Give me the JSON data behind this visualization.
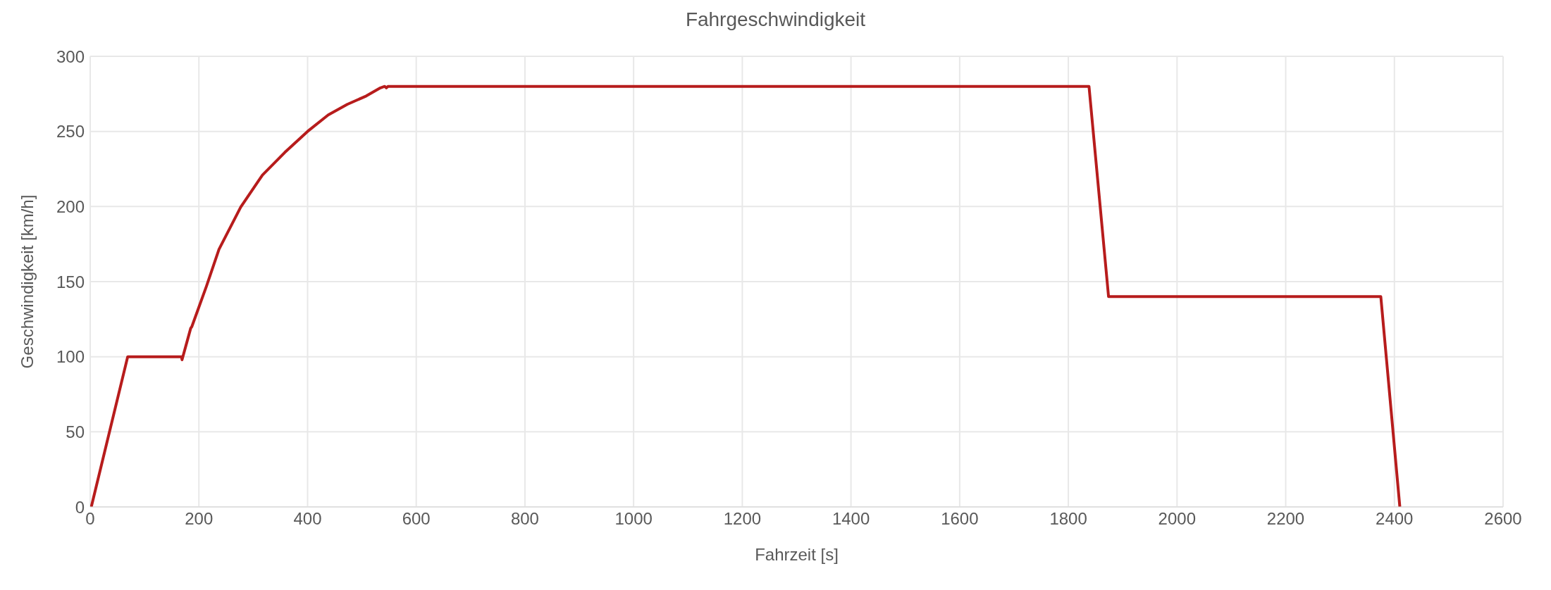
{
  "chart_data": {
    "type": "line",
    "title": "Fahrgeschwindigkeit",
    "xlabel": "Fahrzeit [s]",
    "ylabel": "Geschwindigkeit [km/h]",
    "x": [
      2,
      69,
      168,
      169,
      185,
      187,
      214,
      237,
      277,
      317,
      358,
      400,
      438,
      473,
      508,
      534,
      542,
      545,
      548,
      1838,
      1874,
      2375,
      2410
    ],
    "series": [
      {
        "color": "#b71c1c",
        "values": [
          0,
          100,
          100,
          98,
          119,
          120,
          147,
          171.5,
          199.6,
          221,
          236,
          250,
          261,
          268,
          273.6,
          279,
          280,
          279,
          280,
          280,
          140,
          140,
          0
        ]
      }
    ],
    "xlim": [
      0,
      2600
    ],
    "xticks": [
      0,
      200,
      400,
      600,
      800,
      1000,
      1200,
      1400,
      1600,
      1800,
      2000,
      2200,
      2400,
      2600
    ],
    "ylim": [
      0,
      300
    ],
    "yticks": [
      0,
      50,
      100,
      150,
      200,
      250,
      300
    ],
    "grid": true,
    "marker": "none",
    "line_style": "solid"
  }
}
